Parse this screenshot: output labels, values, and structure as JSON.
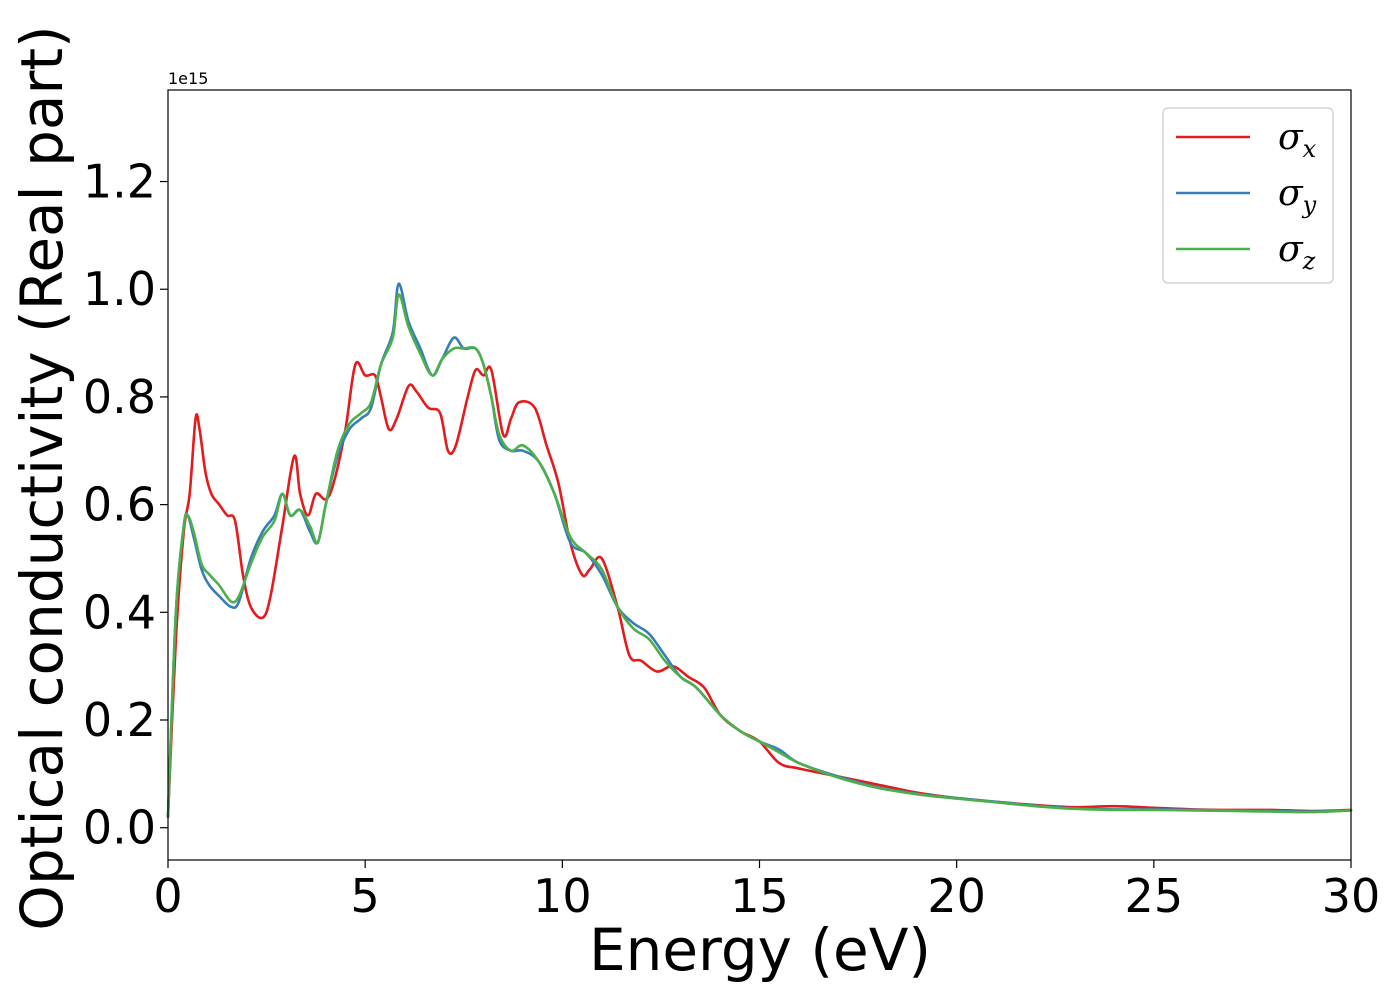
{
  "chart_data": {
    "type": "line",
    "title": "",
    "xlabel": "Energy (eV)",
    "ylabel": "Optical conductivity (Real part)",
    "y_offset_label": "1e15",
    "xlim": [
      0,
      30
    ],
    "ylim": [
      -0.06,
      1.37
    ],
    "x_ticks": [
      0,
      5,
      10,
      15,
      20,
      25,
      30
    ],
    "y_ticks": [
      0.0,
      0.2,
      0.4,
      0.6,
      0.8,
      1.0,
      1.2
    ],
    "x_tick_labels": [
      "0",
      "5",
      "10",
      "15",
      "20",
      "25",
      "30"
    ],
    "y_tick_labels": [
      "0.0",
      "0.2",
      "0.4",
      "0.6",
      "0.8",
      "1.0",
      "1.2"
    ],
    "grid": false,
    "legend_position": "top-right",
    "series": [
      {
        "name": "σ_x",
        "legend_symbol": "σ",
        "legend_subscript": "x",
        "color": "#e41a1c",
        "points": [
          [
            0.0,
            0.02
          ],
          [
            0.2,
            0.35
          ],
          [
            0.4,
            0.55
          ],
          [
            0.55,
            0.62
          ],
          [
            0.7,
            0.76
          ],
          [
            0.8,
            0.74
          ],
          [
            0.95,
            0.66
          ],
          [
            1.1,
            0.62
          ],
          [
            1.3,
            0.6
          ],
          [
            1.5,
            0.58
          ],
          [
            1.7,
            0.57
          ],
          [
            1.9,
            0.47
          ],
          [
            2.1,
            0.41
          ],
          [
            2.4,
            0.39
          ],
          [
            2.6,
            0.43
          ],
          [
            2.9,
            0.56
          ],
          [
            3.2,
            0.69
          ],
          [
            3.35,
            0.62
          ],
          [
            3.55,
            0.58
          ],
          [
            3.75,
            0.62
          ],
          [
            4.0,
            0.61
          ],
          [
            4.2,
            0.64
          ],
          [
            4.5,
            0.74
          ],
          [
            4.75,
            0.86
          ],
          [
            5.0,
            0.84
          ],
          [
            5.25,
            0.84
          ],
          [
            5.4,
            0.8
          ],
          [
            5.6,
            0.74
          ],
          [
            5.8,
            0.76
          ],
          [
            6.1,
            0.82
          ],
          [
            6.3,
            0.81
          ],
          [
            6.6,
            0.78
          ],
          [
            6.9,
            0.77
          ],
          [
            7.1,
            0.7
          ],
          [
            7.3,
            0.71
          ],
          [
            7.6,
            0.8
          ],
          [
            7.8,
            0.85
          ],
          [
            8.0,
            0.84
          ],
          [
            8.2,
            0.85
          ],
          [
            8.5,
            0.73
          ],
          [
            8.7,
            0.76
          ],
          [
            8.9,
            0.79
          ],
          [
            9.3,
            0.78
          ],
          [
            9.6,
            0.71
          ],
          [
            9.9,
            0.64
          ],
          [
            10.2,
            0.53
          ],
          [
            10.5,
            0.47
          ],
          [
            10.7,
            0.48
          ],
          [
            11.0,
            0.5
          ],
          [
            11.4,
            0.41
          ],
          [
            11.7,
            0.32
          ],
          [
            12.0,
            0.31
          ],
          [
            12.4,
            0.29
          ],
          [
            12.8,
            0.3
          ],
          [
            13.2,
            0.28
          ],
          [
            13.6,
            0.26
          ],
          [
            14.0,
            0.21
          ],
          [
            14.5,
            0.18
          ],
          [
            15.0,
            0.16
          ],
          [
            15.5,
            0.12
          ],
          [
            16.0,
            0.11
          ],
          [
            17.0,
            0.095
          ],
          [
            18.0,
            0.08
          ],
          [
            19.0,
            0.065
          ],
          [
            20.0,
            0.055
          ],
          [
            21.0,
            0.048
          ],
          [
            22.0,
            0.042
          ],
          [
            23.0,
            0.038
          ],
          [
            24.0,
            0.04
          ],
          [
            25.0,
            0.037
          ],
          [
            26.0,
            0.034
          ],
          [
            27.0,
            0.033
          ],
          [
            28.0,
            0.033
          ],
          [
            29.0,
            0.031
          ],
          [
            30.0,
            0.033
          ]
        ]
      },
      {
        "name": "σ_y",
        "legend_symbol": "σ",
        "legend_subscript": "y",
        "color": "#377eb8",
        "points": [
          [
            0.0,
            0.02
          ],
          [
            0.2,
            0.4
          ],
          [
            0.4,
            0.56
          ],
          [
            0.5,
            0.58
          ],
          [
            0.65,
            0.54
          ],
          [
            0.85,
            0.48
          ],
          [
            1.05,
            0.45
          ],
          [
            1.3,
            0.43
          ],
          [
            1.6,
            0.41
          ],
          [
            1.8,
            0.42
          ],
          [
            2.1,
            0.5
          ],
          [
            2.4,
            0.55
          ],
          [
            2.7,
            0.58
          ],
          [
            2.9,
            0.62
          ],
          [
            3.1,
            0.58
          ],
          [
            3.35,
            0.59
          ],
          [
            3.6,
            0.55
          ],
          [
            3.8,
            0.53
          ],
          [
            4.0,
            0.6
          ],
          [
            4.3,
            0.69
          ],
          [
            4.6,
            0.74
          ],
          [
            4.9,
            0.76
          ],
          [
            5.15,
            0.78
          ],
          [
            5.4,
            0.86
          ],
          [
            5.7,
            0.92
          ],
          [
            5.85,
            1.01
          ],
          [
            6.1,
            0.94
          ],
          [
            6.4,
            0.89
          ],
          [
            6.7,
            0.84
          ],
          [
            6.95,
            0.87
          ],
          [
            7.25,
            0.91
          ],
          [
            7.5,
            0.89
          ],
          [
            7.8,
            0.89
          ],
          [
            8.0,
            0.86
          ],
          [
            8.2,
            0.8
          ],
          [
            8.4,
            0.72
          ],
          [
            8.7,
            0.7
          ],
          [
            9.0,
            0.7
          ],
          [
            9.4,
            0.68
          ],
          [
            9.8,
            0.62
          ],
          [
            10.2,
            0.53
          ],
          [
            10.6,
            0.51
          ],
          [
            11.0,
            0.47
          ],
          [
            11.4,
            0.41
          ],
          [
            11.8,
            0.38
          ],
          [
            12.2,
            0.36
          ],
          [
            12.6,
            0.32
          ],
          [
            13.0,
            0.28
          ],
          [
            13.4,
            0.26
          ],
          [
            14.0,
            0.21
          ],
          [
            14.5,
            0.18
          ],
          [
            15.0,
            0.16
          ],
          [
            15.5,
            0.145
          ],
          [
            16.0,
            0.12
          ],
          [
            17.0,
            0.095
          ],
          [
            18.0,
            0.075
          ],
          [
            19.0,
            0.063
          ],
          [
            20.0,
            0.055
          ],
          [
            21.0,
            0.048
          ],
          [
            22.0,
            0.041
          ],
          [
            23.0,
            0.036
          ],
          [
            24.0,
            0.034
          ],
          [
            25.0,
            0.034
          ],
          [
            26.0,
            0.033
          ],
          [
            27.0,
            0.032
          ],
          [
            28.0,
            0.031
          ],
          [
            29.0,
            0.03
          ],
          [
            30.0,
            0.032
          ]
        ]
      },
      {
        "name": "σ_z",
        "legend_symbol": "σ",
        "legend_subscript": "z",
        "color": "#4daf4a",
        "points": [
          [
            0.0,
            0.02
          ],
          [
            0.2,
            0.4
          ],
          [
            0.4,
            0.56
          ],
          [
            0.5,
            0.58
          ],
          [
            0.65,
            0.55
          ],
          [
            0.85,
            0.49
          ],
          [
            1.05,
            0.47
          ],
          [
            1.3,
            0.45
          ],
          [
            1.6,
            0.42
          ],
          [
            1.8,
            0.43
          ],
          [
            2.1,
            0.49
          ],
          [
            2.4,
            0.54
          ],
          [
            2.7,
            0.57
          ],
          [
            2.9,
            0.62
          ],
          [
            3.1,
            0.58
          ],
          [
            3.35,
            0.59
          ],
          [
            3.6,
            0.56
          ],
          [
            3.8,
            0.53
          ],
          [
            4.0,
            0.6
          ],
          [
            4.3,
            0.7
          ],
          [
            4.6,
            0.75
          ],
          [
            4.9,
            0.77
          ],
          [
            5.15,
            0.79
          ],
          [
            5.4,
            0.86
          ],
          [
            5.7,
            0.91
          ],
          [
            5.85,
            0.99
          ],
          [
            6.1,
            0.93
          ],
          [
            6.4,
            0.88
          ],
          [
            6.7,
            0.84
          ],
          [
            6.95,
            0.87
          ],
          [
            7.25,
            0.89
          ],
          [
            7.5,
            0.89
          ],
          [
            7.8,
            0.89
          ],
          [
            8.0,
            0.86
          ],
          [
            8.2,
            0.8
          ],
          [
            8.4,
            0.73
          ],
          [
            8.7,
            0.7
          ],
          [
            9.0,
            0.71
          ],
          [
            9.4,
            0.68
          ],
          [
            9.8,
            0.62
          ],
          [
            10.2,
            0.54
          ],
          [
            10.6,
            0.51
          ],
          [
            11.0,
            0.48
          ],
          [
            11.4,
            0.41
          ],
          [
            11.8,
            0.37
          ],
          [
            12.2,
            0.35
          ],
          [
            12.6,
            0.31
          ],
          [
            13.0,
            0.28
          ],
          [
            13.4,
            0.26
          ],
          [
            14.0,
            0.21
          ],
          [
            14.5,
            0.18
          ],
          [
            15.0,
            0.16
          ],
          [
            15.5,
            0.14
          ],
          [
            16.0,
            0.12
          ],
          [
            17.0,
            0.093
          ],
          [
            18.0,
            0.074
          ],
          [
            19.0,
            0.062
          ],
          [
            20.0,
            0.054
          ],
          [
            21.0,
            0.047
          ],
          [
            22.0,
            0.04
          ],
          [
            23.0,
            0.035
          ],
          [
            24.0,
            0.033
          ],
          [
            25.0,
            0.033
          ],
          [
            26.0,
            0.032
          ],
          [
            27.0,
            0.031
          ],
          [
            28.0,
            0.03
          ],
          [
            29.0,
            0.029
          ],
          [
            30.0,
            0.032
          ]
        ]
      }
    ]
  }
}
